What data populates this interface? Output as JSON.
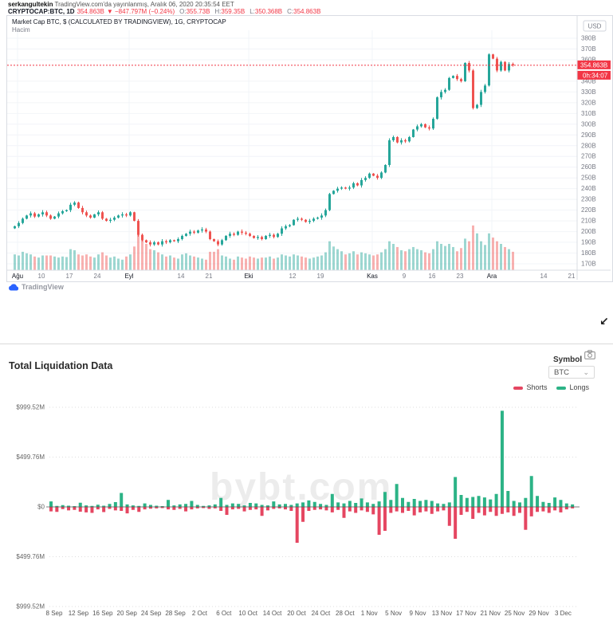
{
  "tradingview": {
    "byline": {
      "user": "serkangultekin",
      "rest": " TradingView.com'da yayınlanmış, Aralık 06, 2020 20:35:54 EET"
    },
    "status": {
      "symbol": "CRYPTOCAP:BTC, 1D",
      "price": "354.863B",
      "change": "▼ −847.797M (−0.24%)",
      "o_label": "O:",
      "o": "355.73B",
      "h_label": "H:",
      "h": "359.35B",
      "l_label": "L:",
      "l": "350.368B",
      "c_label": "C:",
      "c": "354.863B"
    },
    "legend_title": "Market Cap BTC, $ (CALCULATED BY TRADINGVIEW), 1G, CRYPTOCAP",
    "legend_sub": "Hacim",
    "currency_button": "USD",
    "price_label": "354.863B",
    "countdown": "0h:34:07",
    "logo_text": "TradingView",
    "colors": {
      "up": "#26a69a",
      "down": "#ef5350",
      "accent_red": "#f23645"
    }
  },
  "liquidation": {
    "title": "Total Liquidation Data",
    "symbol_label": "Symbol",
    "symbol_value": "BTC",
    "watermark": "bybt.com"
  },
  "resize_arrow": "↙",
  "chart_data": [
    {
      "type": "candlestick",
      "title": "Market Cap BTC, $ (CALCULATED BY TRADINGVIEW)",
      "symbol": "CRYPTOCAP:BTC",
      "interval": "1G",
      "unit": "$B",
      "ylim": [
        168,
        382
      ],
      "current_price": 354.863,
      "y_tick_values": [
        380,
        370,
        360,
        340,
        330,
        320,
        310,
        300,
        290,
        280,
        270,
        260,
        250,
        240,
        230,
        220,
        210,
        200,
        190,
        180,
        170
      ],
      "x_ticks": [
        {
          "label": "Ağu",
          "i": 1,
          "month": true
        },
        {
          "label": "10",
          "i": 7
        },
        {
          "label": "17",
          "i": 14
        },
        {
          "label": "24",
          "i": 21
        },
        {
          "label": "Eyl",
          "i": 29,
          "month": true
        },
        {
          "label": "14",
          "i": 42
        },
        {
          "label": "21",
          "i": 49
        },
        {
          "label": "Eki",
          "i": 59,
          "month": true
        },
        {
          "label": "12",
          "i": 70
        },
        {
          "label": "19",
          "i": 77
        },
        {
          "label": "Kas",
          "i": 90,
          "month": true
        },
        {
          "label": "9",
          "i": 98
        },
        {
          "label": "16",
          "i": 105
        },
        {
          "label": "23",
          "i": 112
        },
        {
          "label": "Ara",
          "i": 120,
          "month": true
        },
        {
          "label": "14",
          "i": 133
        },
        {
          "label": "21",
          "i": 140
        }
      ],
      "closes": [
        205,
        208,
        212,
        215,
        217,
        214,
        216,
        218,
        215,
        212,
        214,
        217,
        219,
        220,
        225,
        227,
        222,
        218,
        215,
        213,
        216,
        218,
        212,
        210,
        211,
        213,
        215,
        216,
        215,
        218,
        210,
        197,
        192,
        190,
        188,
        190,
        188,
        191,
        190,
        192,
        191,
        193,
        196,
        198,
        200,
        199,
        201,
        202,
        200,
        193,
        191,
        188,
        192,
        196,
        198,
        197,
        200,
        199,
        198,
        196,
        194,
        195,
        193,
        196,
        197,
        195,
        198,
        203,
        205,
        206,
        211,
        212,
        211,
        209,
        210,
        212,
        213,
        215,
        220,
        235,
        238,
        240,
        241,
        240,
        241,
        245,
        243,
        248,
        250,
        254,
        252,
        250,
        255,
        262,
        285,
        288,
        283,
        285,
        284,
        288,
        295,
        298,
        300,
        297,
        296,
        305,
        325,
        330,
        332,
        343,
        345,
        342,
        340,
        357,
        350,
        315,
        318,
        330,
        336,
        365,
        361,
        350,
        358,
        350,
        356,
        354.86
      ],
      "volumes": [
        30,
        28,
        35,
        32,
        30,
        26,
        24,
        28,
        28,
        28,
        26,
        24,
        26,
        25,
        40,
        38,
        30,
        28,
        30,
        26,
        24,
        30,
        34,
        28,
        24,
        26,
        22,
        20,
        26,
        30,
        45,
        75,
        60,
        50,
        40,
        38,
        34,
        30,
        26,
        28,
        24,
        22,
        30,
        32,
        28,
        26,
        24,
        22,
        20,
        35,
        35,
        40,
        28,
        26,
        22,
        20,
        26,
        24,
        22,
        26,
        24,
        22,
        24,
        24,
        26,
        22,
        24,
        30,
        28,
        26,
        30,
        28,
        26,
        24,
        22,
        24,
        26,
        28,
        34,
        55,
        45,
        40,
        36,
        30,
        32,
        36,
        30,
        34,
        32,
        30,
        28,
        30,
        34,
        40,
        55,
        50,
        44,
        38,
        36,
        40,
        44,
        40,
        38,
        34,
        32,
        40,
        55,
        50,
        46,
        50,
        44,
        36,
        42,
        60,
        55,
        85,
        70,
        55,
        48,
        70,
        62,
        55,
        50,
        44,
        40,
        35
      ]
    },
    {
      "type": "bar",
      "title": "Total Liquidation Data",
      "unit": "$M",
      "n_bars": 90,
      "ylim": [
        -1120,
        1120
      ],
      "y_ticks": [
        {
          "label": "$999.52M",
          "v": 999.52
        },
        {
          "label": "$499.76M",
          "v": 499.76
        },
        {
          "label": "$0",
          "v": 0
        },
        {
          "label": "$499.76M",
          "v": -499.76
        },
        {
          "label": "$999.52M",
          "v": -999.52
        }
      ],
      "x_tick_labels": [
        "8 Sep",
        "12 Sep",
        "16 Sep",
        "20 Sep",
        "24 Sep",
        "28 Sep",
        "2 Oct",
        "6 Oct",
        "10 Oct",
        "14 Oct",
        "20 Oct",
        "24 Oct",
        "28 Oct",
        "1 Nov",
        "5 Nov",
        "9 Nov",
        "13 Nov",
        "17 Nov",
        "21 Nov",
        "25 Nov",
        "29 Nov",
        "3 Dec"
      ],
      "legend_position": "top-right",
      "series": [
        {
          "name": "Shorts",
          "color": "#e54661",
          "values": [
            -45,
            -50,
            -22,
            -35,
            -30,
            -48,
            -55,
            -60,
            -25,
            -52,
            -20,
            -35,
            -40,
            -65,
            -30,
            -50,
            -25,
            -18,
            -15,
            -12,
            -25,
            -30,
            -20,
            -45,
            -25,
            -15,
            -12,
            -20,
            -15,
            -40,
            -80,
            -25,
            -20,
            -45,
            -30,
            -25,
            -90,
            -35,
            -20,
            -15,
            -25,
            -40,
            -360,
            -150,
            -40,
            -30,
            -25,
            -35,
            -55,
            -30,
            -110,
            -45,
            -60,
            -35,
            -50,
            -75,
            -280,
            -240,
            -60,
            -45,
            -60,
            -40,
            -85,
            -55,
            -45,
            -70,
            -45,
            -35,
            -190,
            -320,
            -80,
            -50,
            -120,
            -60,
            -85,
            -50,
            -90,
            -70,
            -55,
            -90,
            -60,
            -230,
            -95,
            -50,
            -45,
            -60,
            -35,
            -55,
            -25,
            -15
          ]
        },
        {
          "name": "Longs",
          "color": "#2cb386",
          "values": [
            55,
            10,
            18,
            12,
            8,
            42,
            15,
            10,
            22,
            12,
            30,
            48,
            140,
            25,
            15,
            10,
            35,
            20,
            12,
            8,
            70,
            15,
            25,
            30,
            60,
            20,
            10,
            15,
            25,
            90,
            20,
            35,
            30,
            15,
            40,
            35,
            20,
            15,
            55,
            25,
            30,
            20,
            35,
            45,
            65,
            50,
            30,
            20,
            130,
            45,
            35,
            60,
            40,
            85,
            45,
            30,
            55,
            150,
            70,
            230,
            90,
            50,
            80,
            60,
            70,
            60,
            35,
            30,
            45,
            300,
            120,
            90,
            100,
            110,
            95,
            75,
            130,
            965,
            160,
            60,
            45,
            90,
            310,
            110,
            50,
            40,
            95,
            70,
            35,
            25
          ]
        }
      ],
      "watermark": "bybt.com"
    }
  ]
}
